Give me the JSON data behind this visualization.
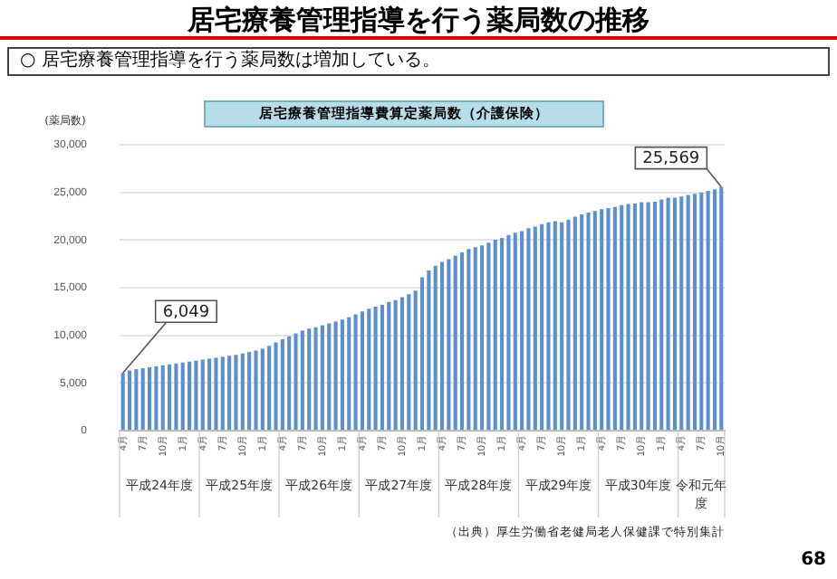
{
  "chart_data": {
    "type": "bar",
    "title": "居宅療養管理指導費算定薬局数（介護保険）",
    "ylabel": "(薬局数)",
    "annotations": [
      "居宅療養管理指導を行う薬局数の推移",
      "○ 居宅療養管理指導を行う薬局数は増加している。",
      "平成24年度",
      "平成25年度",
      "平成26年度",
      "平成27年度",
      "平成28年度",
      "平成29年度",
      "平成30年度",
      "令和元年度",
      "（出典）厚生労働省老健局老人保健課で特別集計",
      "68"
    ],
    "categories": [
      "4月",
      null,
      null,
      "7月",
      null,
      null,
      "10月",
      null,
      null,
      "1月",
      null,
      null,
      "4月",
      null,
      null,
      "7月",
      null,
      null,
      "10月",
      null,
      null,
      "1月",
      null,
      null,
      "4月",
      null,
      null,
      "7月",
      null,
      null,
      "10月",
      null,
      null,
      "1月",
      null,
      null,
      "4月",
      null,
      null,
      "7月",
      null,
      null,
      "10月",
      null,
      null,
      "1月",
      null,
      null,
      "4月",
      null,
      null,
      "7月",
      null,
      null,
      "10月",
      null,
      null,
      "1月",
      null,
      null,
      "4月",
      null,
      null,
      "7月",
      null,
      null,
      "10月",
      null,
      null,
      "1月",
      null,
      null,
      "4月",
      null,
      null,
      "7月",
      null,
      null,
      "10月",
      null,
      null,
      "1月",
      null,
      null,
      "4月",
      null,
      null,
      "7月",
      null,
      null,
      "10月"
    ],
    "values": [
      6049,
      6300,
      6450,
      6550,
      6650,
      6750,
      6850,
      6950,
      7050,
      7150,
      7250,
      7350,
      7450,
      7550,
      7650,
      7750,
      7850,
      7950,
      8100,
      8250,
      8400,
      8600,
      8900,
      9250,
      9600,
      9900,
      10200,
      10500,
      10700,
      10850,
      11050,
      11250,
      11450,
      11650,
      11900,
      12200,
      12500,
      12800,
      13000,
      13200,
      13500,
      13700,
      14000,
      14300,
      14700,
      16100,
      16800,
      17300,
      17700,
      18000,
      18350,
      18700,
      19070,
      19250,
      19430,
      19730,
      20040,
      20220,
      20520,
      20760,
      20940,
      21240,
      21420,
      21670,
      21850,
      21970,
      21850,
      22150,
      22450,
      22690,
      22870,
      23050,
      23230,
      23360,
      23480,
      23660,
      23780,
      23840,
      23960,
      23960,
      24020,
      24260,
      24440,
      24440,
      24560,
      24740,
      24860,
      24980,
      25170,
      25290,
      25569
    ],
    "value_labels": [
      "6,049",
      null,
      null,
      null,
      null,
      null,
      null,
      null,
      null,
      null,
      null,
      null,
      null,
      null,
      null,
      null,
      null,
      null,
      null,
      null,
      null,
      null,
      null,
      null,
      null,
      null,
      null,
      null,
      null,
      null,
      null,
      null,
      null,
      null,
      null,
      null,
      null,
      null,
      null,
      null,
      null,
      null,
      null,
      null,
      null,
      null,
      null,
      null,
      null,
      null,
      null,
      null,
      null,
      null,
      null,
      null,
      null,
      null,
      null,
      null,
      null,
      null,
      null,
      null,
      null,
      null,
      null,
      null,
      null,
      null,
      null,
      null,
      null,
      null,
      null,
      null,
      null,
      null,
      null,
      null,
      null,
      null,
      null,
      null,
      null,
      null,
      null,
      null,
      null,
      null,
      "25,569"
    ],
    "color": "#5b8fd0",
    "ylim": [
      0,
      30000
    ],
    "yticks": [
      0,
      {
        "value": 5000,
        "label": "5,000"
      },
      {
        "value": 10000,
        "label": "10,000"
      },
      {
        "value": 15000,
        "label": "15,000"
      },
      {
        "value": 20000,
        "label": "20,000"
      },
      {
        "value": 25000,
        "label": "25,000"
      },
      {
        "value": 30000,
        "label": "30,000"
      }
    ],
    "grid": "y",
    "legend": false
  }
}
